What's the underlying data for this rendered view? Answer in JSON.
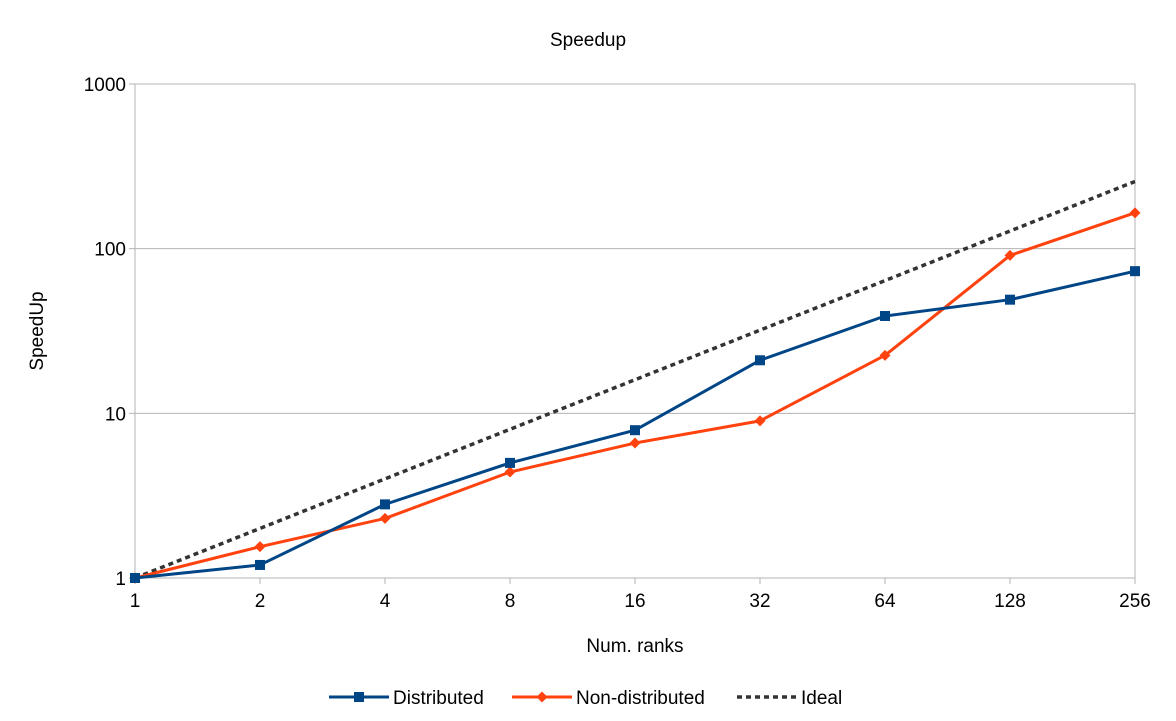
{
  "chart_data": {
    "type": "line",
    "title": "Speedup",
    "xlabel": "Num. ranks",
    "ylabel": "SpeedUp",
    "x_scale": "log2",
    "y_scale": "log10",
    "x": [
      1,
      2,
      4,
      8,
      16,
      32,
      64,
      128,
      256
    ],
    "x_tick_labels": [
      "1",
      "2",
      "4",
      "8",
      "16",
      "32",
      "64",
      "128",
      "256"
    ],
    "y_ticks": [
      1,
      10,
      100,
      1000
    ],
    "y_tick_labels": [
      "1",
      "10",
      "100",
      "1000"
    ],
    "xlim": [
      1,
      256
    ],
    "ylim": [
      1,
      1000
    ],
    "grid": "horizontal",
    "legend_position": "bottom",
    "series": [
      {
        "name": "Distributed",
        "values": [
          1.0,
          1.2,
          2.8,
          5.0,
          7.9,
          21,
          39,
          49,
          73
        ],
        "color": "#004586",
        "marker": "square",
        "line_style": "solid"
      },
      {
        "name": "Non-distributed",
        "values": [
          1.0,
          1.55,
          2.3,
          4.4,
          6.6,
          9.0,
          22.5,
          91,
          165
        ],
        "color": "#ff420e",
        "marker": "diamond",
        "line_style": "solid"
      },
      {
        "name": "Ideal",
        "values": [
          1,
          2,
          4,
          8,
          16,
          32,
          64,
          128,
          256
        ],
        "color": "#333333",
        "marker": "none",
        "line_style": "dotted"
      }
    ]
  }
}
